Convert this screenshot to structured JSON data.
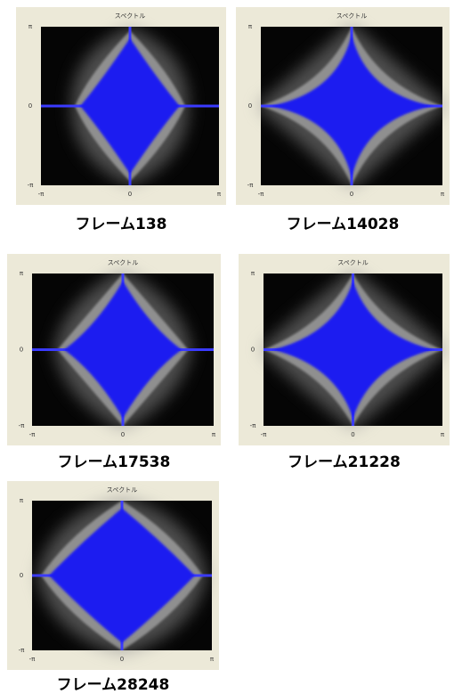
{
  "panels": [
    {
      "title": "スペクトル",
      "y_ticks": [
        "π",
        "0",
        "-π"
      ],
      "x_ticks": [
        "-π",
        "0",
        "π"
      ],
      "caption": "フレーム138"
    },
    {
      "title": "スペクトル",
      "y_ticks": [
        "π",
        "0",
        "-π"
      ],
      "x_ticks": [
        "-π",
        "0",
        "π"
      ],
      "caption": "フレーム14028"
    },
    {
      "title": "スペクトル",
      "y_ticks": [
        "π",
        "0",
        "-π"
      ],
      "x_ticks": [
        "-π",
        "0",
        "π"
      ],
      "caption": "フレーム17538"
    },
    {
      "title": "スペクトル",
      "y_ticks": [
        "π",
        "0",
        "-π"
      ],
      "x_ticks": [
        "-π",
        "0",
        "π"
      ],
      "caption": "フレーム21228"
    },
    {
      "title": "スペクトル",
      "y_ticks": [
        "π",
        "0",
        "-π"
      ],
      "x_ticks": [
        "-π",
        "0",
        "π"
      ],
      "caption": "フレーム28248"
    }
  ]
}
